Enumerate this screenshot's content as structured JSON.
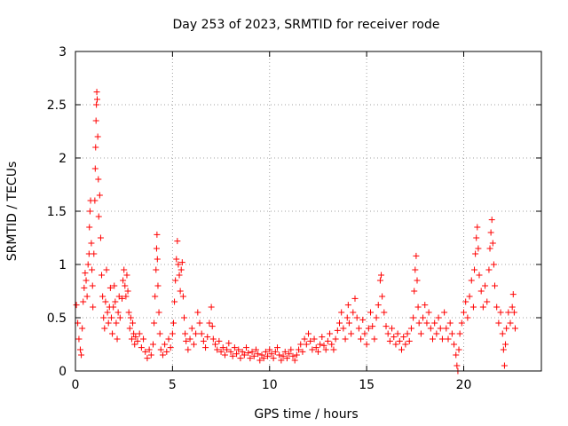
{
  "chart_data": {
    "type": "scatter",
    "title": "Day 253 of 2023, SRMTID for receiver rode",
    "xlabel": "GPS time / hours",
    "ylabel": "SRMTID / TECUs",
    "xlim": [
      0,
      24
    ],
    "ylim": [
      0,
      3
    ],
    "xticks": [
      0,
      5,
      10,
      15,
      20
    ],
    "yticks": [
      0,
      0.5,
      1,
      1.5,
      2,
      2.5,
      3
    ],
    "xtick_labels": [
      "0",
      "5",
      "10",
      "15",
      "20"
    ],
    "ytick_labels": [
      "0",
      "0.5",
      "1",
      "1.5",
      "2",
      "2.5",
      "3"
    ],
    "grid": true,
    "marker": "plus",
    "color": "#ff0000",
    "series": [
      {
        "name": "SRMTID",
        "points": [
          [
            0.05,
            0.62
          ],
          [
            0.12,
            0.45
          ],
          [
            0.18,
            0.3
          ],
          [
            0.25,
            0.2
          ],
          [
            0.3,
            0.15
          ],
          [
            0.35,
            0.4
          ],
          [
            0.4,
            0.65
          ],
          [
            0.45,
            0.78
          ],
          [
            0.5,
            0.92
          ],
          [
            0.55,
            0.85
          ],
          [
            0.6,
            0.7
          ],
          [
            0.65,
            1.0
          ],
          [
            0.7,
            1.1
          ],
          [
            0.72,
            1.35
          ],
          [
            0.75,
            1.5
          ],
          [
            0.78,
            1.6
          ],
          [
            0.82,
            1.2
          ],
          [
            0.85,
            0.95
          ],
          [
            0.88,
            0.8
          ],
          [
            0.9,
            0.6
          ],
          [
            0.95,
            1.1
          ],
          [
            1.0,
            1.6
          ],
          [
            1.02,
            1.9
          ],
          [
            1.04,
            2.1
          ],
          [
            1.06,
            2.35
          ],
          [
            1.08,
            2.5
          ],
          [
            1.1,
            2.62
          ],
          [
            1.12,
            2.55
          ],
          [
            1.15,
            2.2
          ],
          [
            1.18,
            1.8
          ],
          [
            1.2,
            1.45
          ],
          [
            1.25,
            1.65
          ],
          [
            1.3,
            1.25
          ],
          [
            1.35,
            0.9
          ],
          [
            1.4,
            0.7
          ],
          [
            1.45,
            0.5
          ],
          [
            1.5,
            0.4
          ],
          [
            1.55,
            0.65
          ],
          [
            1.6,
            0.95
          ],
          [
            1.65,
            0.55
          ],
          [
            1.7,
            0.45
          ],
          [
            1.75,
            0.6
          ],
          [
            1.8,
            0.78
          ],
          [
            1.85,
            0.5
          ],
          [
            1.9,
            0.35
          ],
          [
            1.95,
            0.6
          ],
          [
            2.0,
            0.8
          ],
          [
            2.05,
            0.65
          ],
          [
            2.1,
            0.45
          ],
          [
            2.15,
            0.3
          ],
          [
            2.2,
            0.55
          ],
          [
            2.25,
            0.7
          ],
          [
            2.3,
            0.5
          ],
          [
            2.4,
            0.68
          ],
          [
            2.45,
            0.85
          ],
          [
            2.5,
            0.95
          ],
          [
            2.55,
            0.8
          ],
          [
            2.6,
            0.7
          ],
          [
            2.65,
            0.9
          ],
          [
            2.7,
            0.75
          ],
          [
            2.75,
            0.55
          ],
          [
            2.8,
            0.4
          ],
          [
            2.85,
            0.5
          ],
          [
            2.9,
            0.3
          ],
          [
            2.95,
            0.45
          ],
          [
            3.0,
            0.35
          ],
          [
            3.05,
            0.25
          ],
          [
            3.1,
            0.32
          ],
          [
            3.2,
            0.28
          ],
          [
            3.3,
            0.35
          ],
          [
            3.4,
            0.22
          ],
          [
            3.5,
            0.3
          ],
          [
            3.6,
            0.18
          ],
          [
            3.7,
            0.12
          ],
          [
            3.8,
            0.2
          ],
          [
            3.9,
            0.15
          ],
          [
            4.0,
            0.25
          ],
          [
            4.05,
            0.45
          ],
          [
            4.1,
            0.7
          ],
          [
            4.15,
            0.95
          ],
          [
            4.18,
            1.15
          ],
          [
            4.2,
            1.28
          ],
          [
            4.22,
            1.05
          ],
          [
            4.25,
            0.8
          ],
          [
            4.3,
            0.55
          ],
          [
            4.35,
            0.35
          ],
          [
            4.4,
            0.2
          ],
          [
            4.5,
            0.15
          ],
          [
            4.6,
            0.25
          ],
          [
            4.7,
            0.18
          ],
          [
            4.8,
            0.3
          ],
          [
            4.9,
            0.22
          ],
          [
            5.0,
            0.35
          ],
          [
            5.05,
            0.45
          ],
          [
            5.1,
            0.65
          ],
          [
            5.15,
            0.85
          ],
          [
            5.2,
            1.05
          ],
          [
            5.25,
            1.22
          ],
          [
            5.3,
            1.0
          ],
          [
            5.35,
            0.9
          ],
          [
            5.4,
            0.75
          ],
          [
            5.45,
            0.95
          ],
          [
            5.5,
            1.02
          ],
          [
            5.55,
            0.7
          ],
          [
            5.6,
            0.5
          ],
          [
            5.65,
            0.35
          ],
          [
            5.7,
            0.28
          ],
          [
            5.8,
            0.2
          ],
          [
            5.9,
            0.3
          ],
          [
            6.0,
            0.4
          ],
          [
            6.1,
            0.25
          ],
          [
            6.2,
            0.35
          ],
          [
            6.3,
            0.55
          ],
          [
            6.4,
            0.45
          ],
          [
            6.5,
            0.35
          ],
          [
            6.6,
            0.28
          ],
          [
            6.7,
            0.22
          ],
          [
            6.8,
            0.32
          ],
          [
            6.9,
            0.45
          ],
          [
            7.0,
            0.6
          ],
          [
            7.05,
            0.42
          ],
          [
            7.1,
            0.3
          ],
          [
            7.2,
            0.25
          ],
          [
            7.3,
            0.2
          ],
          [
            7.4,
            0.28
          ],
          [
            7.5,
            0.18
          ],
          [
            7.6,
            0.22
          ],
          [
            7.7,
            0.15
          ],
          [
            7.8,
            0.2
          ],
          [
            7.9,
            0.26
          ],
          [
            8.0,
            0.18
          ],
          [
            8.1,
            0.14
          ],
          [
            8.2,
            0.22
          ],
          [
            8.3,
            0.16
          ],
          [
            8.4,
            0.2
          ],
          [
            8.5,
            0.12
          ],
          [
            8.6,
            0.18
          ],
          [
            8.7,
            0.15
          ],
          [
            8.8,
            0.22
          ],
          [
            8.9,
            0.17
          ],
          [
            9.0,
            0.12
          ],
          [
            9.1,
            0.18
          ],
          [
            9.2,
            0.14
          ],
          [
            9.3,
            0.2
          ],
          [
            9.4,
            0.16
          ],
          [
            9.5,
            0.1
          ],
          [
            9.6,
            0.15
          ],
          [
            9.7,
            0.12
          ],
          [
            9.8,
            0.18
          ],
          [
            9.9,
            0.14
          ],
          [
            10.0,
            0.2
          ],
          [
            10.1,
            0.16
          ],
          [
            10.2,
            0.12
          ],
          [
            10.3,
            0.18
          ],
          [
            10.4,
            0.22
          ],
          [
            10.5,
            0.15
          ],
          [
            10.6,
            0.1
          ],
          [
            10.7,
            0.14
          ],
          [
            10.8,
            0.18
          ],
          [
            10.9,
            0.12
          ],
          [
            11.0,
            0.16
          ],
          [
            11.1,
            0.2
          ],
          [
            11.2,
            0.14
          ],
          [
            11.3,
            0.1
          ],
          [
            11.4,
            0.15
          ],
          [
            11.5,
            0.2
          ],
          [
            11.6,
            0.25
          ],
          [
            11.7,
            0.18
          ],
          [
            11.8,
            0.3
          ],
          [
            11.9,
            0.25
          ],
          [
            12.0,
            0.35
          ],
          [
            12.1,
            0.28
          ],
          [
            12.2,
            0.2
          ],
          [
            12.3,
            0.3
          ],
          [
            12.4,
            0.22
          ],
          [
            12.5,
            0.18
          ],
          [
            12.6,
            0.25
          ],
          [
            12.7,
            0.32
          ],
          [
            12.8,
            0.24
          ],
          [
            12.9,
            0.2
          ],
          [
            13.0,
            0.28
          ],
          [
            13.1,
            0.35
          ],
          [
            13.2,
            0.25
          ],
          [
            13.3,
            0.2
          ],
          [
            13.4,
            0.3
          ],
          [
            13.5,
            0.38
          ],
          [
            13.6,
            0.45
          ],
          [
            13.7,
            0.55
          ],
          [
            13.8,
            0.4
          ],
          [
            13.9,
            0.3
          ],
          [
            14.0,
            0.5
          ],
          [
            14.05,
            0.62
          ],
          [
            14.1,
            0.45
          ],
          [
            14.2,
            0.35
          ],
          [
            14.3,
            0.55
          ],
          [
            14.4,
            0.68
          ],
          [
            14.5,
            0.5
          ],
          [
            14.6,
            0.4
          ],
          [
            14.7,
            0.3
          ],
          [
            14.8,
            0.48
          ],
          [
            14.9,
            0.35
          ],
          [
            15.0,
            0.25
          ],
          [
            15.1,
            0.4
          ],
          [
            15.2,
            0.55
          ],
          [
            15.3,
            0.42
          ],
          [
            15.4,
            0.3
          ],
          [
            15.5,
            0.5
          ],
          [
            15.6,
            0.62
          ],
          [
            15.7,
            0.85
          ],
          [
            15.75,
            0.9
          ],
          [
            15.8,
            0.7
          ],
          [
            15.9,
            0.55
          ],
          [
            16.0,
            0.42
          ],
          [
            16.1,
            0.35
          ],
          [
            16.2,
            0.28
          ],
          [
            16.3,
            0.4
          ],
          [
            16.4,
            0.32
          ],
          [
            16.5,
            0.25
          ],
          [
            16.6,
            0.35
          ],
          [
            16.7,
            0.28
          ],
          [
            16.8,
            0.2
          ],
          [
            16.9,
            0.32
          ],
          [
            17.0,
            0.25
          ],
          [
            17.1,
            0.35
          ],
          [
            17.2,
            0.28
          ],
          [
            17.3,
            0.4
          ],
          [
            17.4,
            0.5
          ],
          [
            17.45,
            0.75
          ],
          [
            17.5,
            0.95
          ],
          [
            17.55,
            1.08
          ],
          [
            17.6,
            0.85
          ],
          [
            17.65,
            0.6
          ],
          [
            17.7,
            0.45
          ],
          [
            17.8,
            0.35
          ],
          [
            17.9,
            0.5
          ],
          [
            18.0,
            0.62
          ],
          [
            18.1,
            0.45
          ],
          [
            18.2,
            0.55
          ],
          [
            18.3,
            0.4
          ],
          [
            18.4,
            0.3
          ],
          [
            18.5,
            0.45
          ],
          [
            18.6,
            0.35
          ],
          [
            18.7,
            0.5
          ],
          [
            18.8,
            0.4
          ],
          [
            18.9,
            0.3
          ],
          [
            19.0,
            0.55
          ],
          [
            19.1,
            0.4
          ],
          [
            19.2,
            0.3
          ],
          [
            19.3,
            0.45
          ],
          [
            19.4,
            0.35
          ],
          [
            19.5,
            0.25
          ],
          [
            19.6,
            0.15
          ],
          [
            19.65,
            0.05
          ],
          [
            19.7,
            0.0
          ],
          [
            19.75,
            0.2
          ],
          [
            19.8,
            0.35
          ],
          [
            19.9,
            0.45
          ],
          [
            20.0,
            0.55
          ],
          [
            20.1,
            0.65
          ],
          [
            20.2,
            0.5
          ],
          [
            20.3,
            0.7
          ],
          [
            20.4,
            0.85
          ],
          [
            20.5,
            0.6
          ],
          [
            20.55,
            0.95
          ],
          [
            20.6,
            1.1
          ],
          [
            20.65,
            1.25
          ],
          [
            20.7,
            1.35
          ],
          [
            20.75,
            1.15
          ],
          [
            20.8,
            0.9
          ],
          [
            20.9,
            0.75
          ],
          [
            21.0,
            0.6
          ],
          [
            21.1,
            0.8
          ],
          [
            21.2,
            0.65
          ],
          [
            21.3,
            0.95
          ],
          [
            21.35,
            1.15
          ],
          [
            21.4,
            1.3
          ],
          [
            21.45,
            1.42
          ],
          [
            21.5,
            1.2
          ],
          [
            21.55,
            1.0
          ],
          [
            21.6,
            0.8
          ],
          [
            21.7,
            0.6
          ],
          [
            21.8,
            0.45
          ],
          [
            21.9,
            0.55
          ],
          [
            22.0,
            0.35
          ],
          [
            22.05,
            0.2
          ],
          [
            22.1,
            0.05
          ],
          [
            22.15,
            0.25
          ],
          [
            22.2,
            0.4
          ],
          [
            22.3,
            0.55
          ],
          [
            22.4,
            0.45
          ],
          [
            22.5,
            0.6
          ],
          [
            22.55,
            0.72
          ],
          [
            22.6,
            0.55
          ],
          [
            22.65,
            0.4
          ]
        ]
      }
    ]
  }
}
